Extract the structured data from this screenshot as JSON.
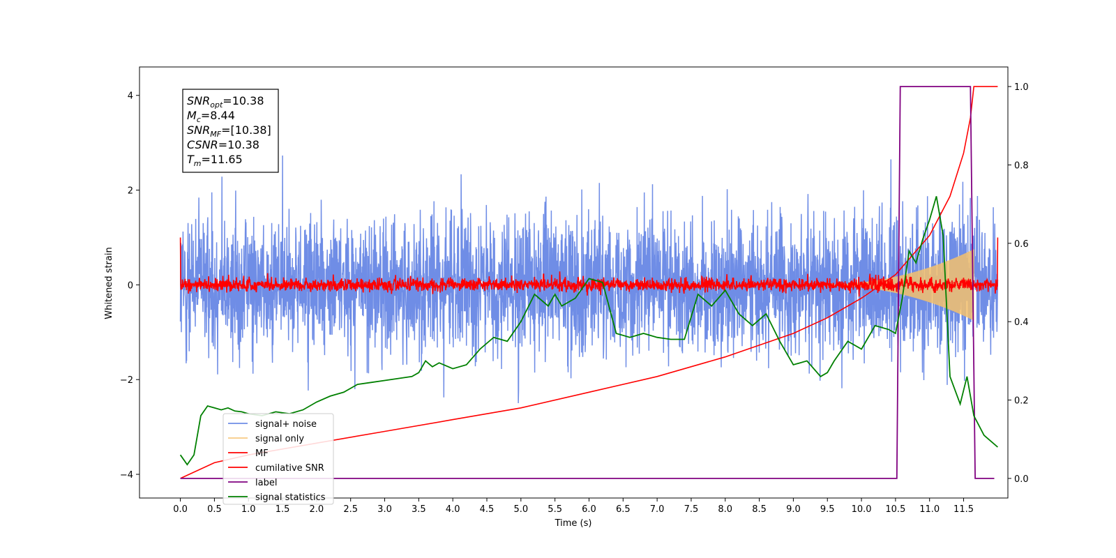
{
  "chart_data": {
    "type": "line",
    "xlabel": "Time (s)",
    "ylabel": "Whitened strain",
    "xlim": [
      -0.6,
      12.15
    ],
    "ylim": [
      -4.5,
      4.6
    ],
    "y2lim": [
      -0.05,
      1.05
    ],
    "x_ticks": [
      0.0,
      0.5,
      1.0,
      1.5,
      2.0,
      2.5,
      3.0,
      3.5,
      4.0,
      4.5,
      5.0,
      5.5,
      6.0,
      6.5,
      7.0,
      7.5,
      8.0,
      8.5,
      9.0,
      9.5,
      10.0,
      10.5,
      11.0,
      11.5
    ],
    "x_tick_labels": [
      "0.0",
      "0.5",
      "1.0",
      "1.5",
      "2.0",
      "2.5",
      "3.0",
      "3.5",
      "4.0",
      "4.5",
      "5.0",
      "5.5",
      "6.0",
      "6.5",
      "7.0",
      "7.5",
      "8.0",
      "8.5",
      "9.0",
      "9.5",
      "10.0",
      "10.5",
      "11.0",
      "11.5"
    ],
    "y_ticks": [
      -4,
      -2,
      0,
      2,
      4
    ],
    "y_tick_labels": [
      "−4",
      "−2",
      "0",
      "2",
      "4"
    ],
    "y2_ticks": [
      0.0,
      0.2,
      0.4,
      0.6,
      0.8,
      1.0
    ],
    "y2_tick_labels": [
      "0.0",
      "0.2",
      "0.4",
      "0.6",
      "0.8",
      "1.0"
    ],
    "annotation": [
      {
        "base": "SNR",
        "sub": "opt",
        "rest": "=10.38"
      },
      {
        "base": "M",
        "sub": "c",
        "rest": "=8.44"
      },
      {
        "base": "SNR",
        "sub": "MF",
        "rest": "=[10.38]"
      },
      {
        "base": "CSNR",
        "sub": "",
        "rest": "=10.38"
      },
      {
        "base": "T",
        "sub": "m",
        "rest": "=11.65"
      }
    ],
    "legend_position": "lower-left",
    "colors": {
      "signal_noise": "#6f8de6",
      "signal_only": "#f5c16c",
      "mf": "#ff0000",
      "csnr": "#ff0000",
      "label": "#800080",
      "statistics": "#008000"
    },
    "series": [
      {
        "name": "signal+ noise",
        "key": "signal_noise",
        "axis": "left",
        "description_envelope": [
          [
            0.0,
            -2.2,
            2.2
          ],
          [
            12.0,
            -2.2,
            2.2
          ]
        ]
      },
      {
        "name": "signal only",
        "key": "signal_only",
        "axis": "left",
        "chirp": {
          "start": 9.3,
          "end": 11.65,
          "peak_amplitude": 0.75
        }
      },
      {
        "name": "MF",
        "key": "mf",
        "axis": "left",
        "level": 0.0,
        "start_value": 1.0,
        "end_value": 1.0
      },
      {
        "name": "cumilative SNR",
        "key": "csnr",
        "axis": "right",
        "points": [
          [
            0.0,
            0.0
          ],
          [
            0.5,
            0.04
          ],
          [
            1.0,
            0.06
          ],
          [
            2.0,
            0.09
          ],
          [
            3.0,
            0.12
          ],
          [
            4.0,
            0.15
          ],
          [
            5.0,
            0.18
          ],
          [
            6.0,
            0.22
          ],
          [
            7.0,
            0.26
          ],
          [
            8.0,
            0.31
          ],
          [
            8.5,
            0.34
          ],
          [
            9.0,
            0.37
          ],
          [
            9.5,
            0.41
          ],
          [
            10.0,
            0.46
          ],
          [
            10.5,
            0.52
          ],
          [
            11.0,
            0.62
          ],
          [
            11.3,
            0.72
          ],
          [
            11.5,
            0.83
          ],
          [
            11.6,
            0.92
          ],
          [
            11.65,
            1.0
          ],
          [
            11.7,
            1.0
          ],
          [
            12.0,
            1.0
          ]
        ]
      },
      {
        "name": "label",
        "key": "label",
        "axis": "right",
        "points": [
          [
            0.0,
            0.0
          ],
          [
            10.52,
            0.0
          ],
          [
            10.57,
            1.0
          ],
          [
            11.6,
            1.0
          ],
          [
            11.67,
            0.0
          ],
          [
            11.95,
            0.0
          ]
        ]
      },
      {
        "name": "signal statistics",
        "key": "statistics",
        "axis": "right",
        "points": [
          [
            0.0,
            0.06
          ],
          [
            0.1,
            0.035
          ],
          [
            0.2,
            0.06
          ],
          [
            0.3,
            0.16
          ],
          [
            0.4,
            0.185
          ],
          [
            0.5,
            0.18
          ],
          [
            0.6,
            0.175
          ],
          [
            0.7,
            0.18
          ],
          [
            0.8,
            0.172
          ],
          [
            0.9,
            0.17
          ],
          [
            1.0,
            0.165
          ],
          [
            1.2,
            0.16
          ],
          [
            1.4,
            0.17
          ],
          [
            1.6,
            0.165
          ],
          [
            1.8,
            0.175
          ],
          [
            2.0,
            0.195
          ],
          [
            2.2,
            0.21
          ],
          [
            2.4,
            0.22
          ],
          [
            2.6,
            0.24
          ],
          [
            2.8,
            0.245
          ],
          [
            3.0,
            0.25
          ],
          [
            3.2,
            0.255
          ],
          [
            3.4,
            0.26
          ],
          [
            3.5,
            0.27
          ],
          [
            3.6,
            0.3
          ],
          [
            3.7,
            0.285
          ],
          [
            3.8,
            0.295
          ],
          [
            4.0,
            0.28
          ],
          [
            4.2,
            0.29
          ],
          [
            4.4,
            0.33
          ],
          [
            4.6,
            0.36
          ],
          [
            4.8,
            0.35
          ],
          [
            5.0,
            0.4
          ],
          [
            5.2,
            0.47
          ],
          [
            5.4,
            0.44
          ],
          [
            5.5,
            0.47
          ],
          [
            5.6,
            0.44
          ],
          [
            5.8,
            0.46
          ],
          [
            6.0,
            0.51
          ],
          [
            6.2,
            0.5
          ],
          [
            6.4,
            0.37
          ],
          [
            6.6,
            0.36
          ],
          [
            6.8,
            0.37
          ],
          [
            7.0,
            0.36
          ],
          [
            7.2,
            0.355
          ],
          [
            7.4,
            0.355
          ],
          [
            7.6,
            0.47
          ],
          [
            7.8,
            0.44
          ],
          [
            8.0,
            0.48
          ],
          [
            8.2,
            0.42
          ],
          [
            8.4,
            0.39
          ],
          [
            8.6,
            0.42
          ],
          [
            8.8,
            0.35
          ],
          [
            9.0,
            0.29
          ],
          [
            9.2,
            0.3
          ],
          [
            9.4,
            0.26
          ],
          [
            9.5,
            0.27
          ],
          [
            9.6,
            0.3
          ],
          [
            9.8,
            0.35
          ],
          [
            10.0,
            0.33
          ],
          [
            10.2,
            0.39
          ],
          [
            10.4,
            0.38
          ],
          [
            10.5,
            0.37
          ],
          [
            10.6,
            0.46
          ],
          [
            10.7,
            0.58
          ],
          [
            10.8,
            0.55
          ],
          [
            10.9,
            0.61
          ],
          [
            11.0,
            0.66
          ],
          [
            11.1,
            0.72
          ],
          [
            11.2,
            0.62
          ],
          [
            11.3,
            0.26
          ],
          [
            11.45,
            0.19
          ],
          [
            11.55,
            0.26
          ],
          [
            11.65,
            0.16
          ],
          [
            11.8,
            0.11
          ],
          [
            12.0,
            0.08
          ]
        ]
      }
    ]
  }
}
